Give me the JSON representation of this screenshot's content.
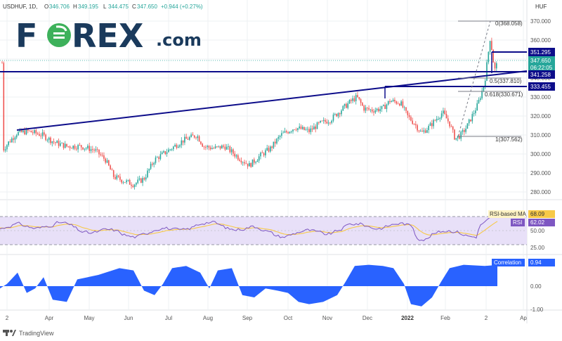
{
  "header": {
    "symbol": "USDHUF, 1D,",
    "o_label": "O",
    "o_value": "346.706",
    "h_label": "H",
    "h_value": "349.195",
    "l_label": "L",
    "l_value": "344.475",
    "c_label": "C",
    "c_value": "347.650",
    "change": "+0.944 (+0.27%)",
    "currency": "HUF"
  },
  "logo": {
    "part1": "F",
    "part2": "REX",
    "suffix": ".com"
  },
  "colors": {
    "up": "#26a69a",
    "down": "#ef5350",
    "navy": "#0d0d8a",
    "grid": "#eef0f3",
    "axis_text": "#555555",
    "rsi_line": "#7e57c2",
    "rsi_ma": "#f7c948",
    "rsi_band": "#e8e0f8",
    "corr_fill": "#2962ff",
    "logo_green": "#3db15b",
    "logo_navy": "#1a3a5c"
  },
  "price_axis": {
    "ticks": [
      "370.000",
      "360.000",
      "350.000",
      "340.000",
      "330.000",
      "320.000",
      "310.000",
      "300.000",
      "290.000",
      "280.000"
    ]
  },
  "price_labels": {
    "p351": "351.295",
    "current": "347.650",
    "timer": "06:22:05",
    "p341": "341.258",
    "p333": "333.455"
  },
  "fib": {
    "f0": "0(368.058)",
    "f05": "0.5(337.810)",
    "f0618": "0.618(330.671)",
    "f1": "1(307.562)"
  },
  "rsi": {
    "ma_label": "RSI-based MA",
    "ma_value": "68.09",
    "rsi_label": "RSI",
    "rsi_value": "62.02",
    "tick_50": "50.00",
    "tick_25": "25.00"
  },
  "correlation": {
    "label": "Correlation",
    "value": "0.94",
    "tick_0": "0.00",
    "tick_neg1": "-1.00"
  },
  "time_axis": [
    "2",
    "Apr",
    "May",
    "Jun",
    "Jul",
    "Aug",
    "Sep",
    "Oct",
    "Nov",
    "Dec",
    "2022",
    "Feb",
    "2",
    "Ap"
  ],
  "footer": {
    "brand": "TradingView"
  }
}
